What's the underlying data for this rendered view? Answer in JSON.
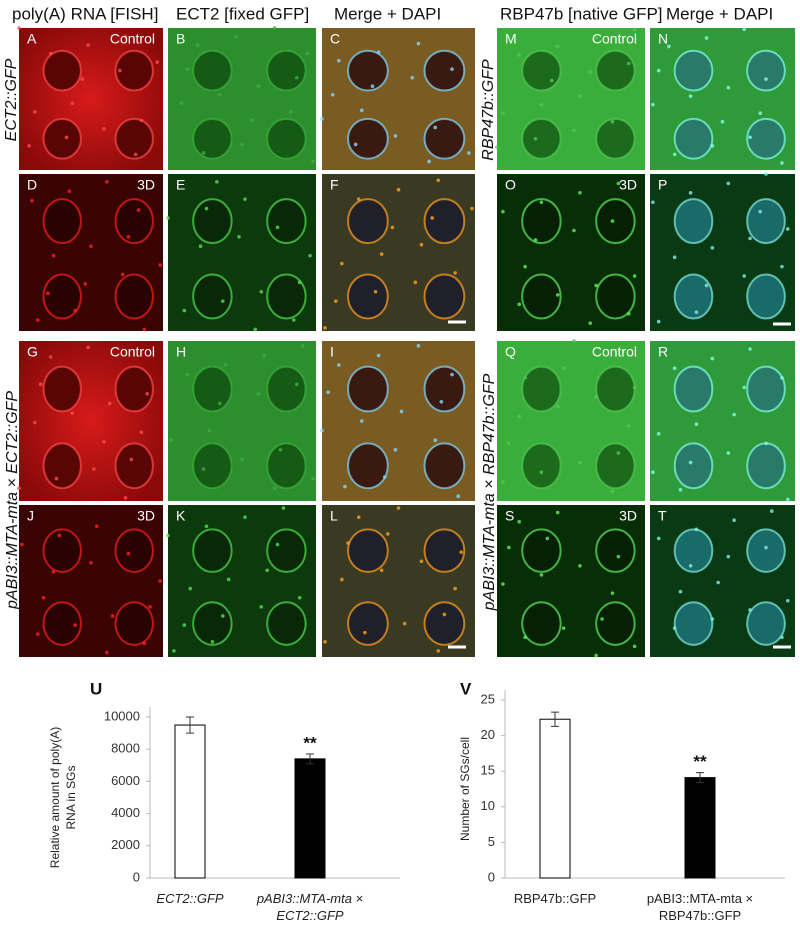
{
  "figure": {
    "headers": [
      "poly(A) RNA [FISH]",
      "ECT2 [fixed GFP]",
      "Merge + DAPI",
      "RBP47b [native GFP]",
      "Merge + DAPI"
    ],
    "row_labels": [
      "ECT2::GFP",
      "RBP47b::GFP",
      "pABI3::MTA-mta × ECT2::GFP",
      "pABI3::MTA-mta × RBP47b::GFP"
    ],
    "panels": [
      {
        "letter": "A",
        "tag": "Control"
      },
      {
        "letter": "B"
      },
      {
        "letter": "C"
      },
      {
        "letter": "D",
        "tag": "3D"
      },
      {
        "letter": "E"
      },
      {
        "letter": "F"
      },
      {
        "letter": "G",
        "tag": "Control"
      },
      {
        "letter": "H"
      },
      {
        "letter": "I"
      },
      {
        "letter": "J",
        "tag": "3D"
      },
      {
        "letter": "K"
      },
      {
        "letter": "L"
      },
      {
        "letter": "M",
        "tag": "Control"
      },
      {
        "letter": "N"
      },
      {
        "letter": "O",
        "tag": "3D"
      },
      {
        "letter": "P"
      },
      {
        "letter": "Q",
        "tag": "Control"
      },
      {
        "letter": "R"
      },
      {
        "letter": "S",
        "tag": "3D"
      },
      {
        "letter": "T"
      }
    ]
  },
  "chart_data": [
    {
      "type": "bar",
      "panel_label": "U",
      "ylabel": [
        "Relative amount of poly(A)",
        "RNA in SGs"
      ],
      "categories": [
        "ECT2::GFP",
        "pABI3::MTA-mta × ECT2::GFP"
      ],
      "values": [
        9500,
        7400
      ],
      "errors": [
        500,
        300
      ],
      "colors": [
        "#ffffff",
        "#000000"
      ],
      "annotations": [
        null,
        "**"
      ],
      "ylim": [
        0,
        10000
      ],
      "yticks": [
        0,
        2000,
        4000,
        6000,
        8000,
        10000
      ]
    },
    {
      "type": "bar",
      "panel_label": "V",
      "ylabel": [
        "Number of SGs/cell"
      ],
      "categories": [
        "RBP47b::GFP",
        "pABI3::MTA-mta × RBP47b::GFP"
      ],
      "values": [
        22.3,
        14.1
      ],
      "errors": [
        1.0,
        0.7
      ],
      "colors": [
        "#ffffff",
        "#000000"
      ],
      "annotations": [
        null,
        "**"
      ],
      "ylim": [
        0,
        25
      ],
      "yticks": [
        0,
        5,
        10,
        15,
        20,
        25
      ]
    }
  ]
}
